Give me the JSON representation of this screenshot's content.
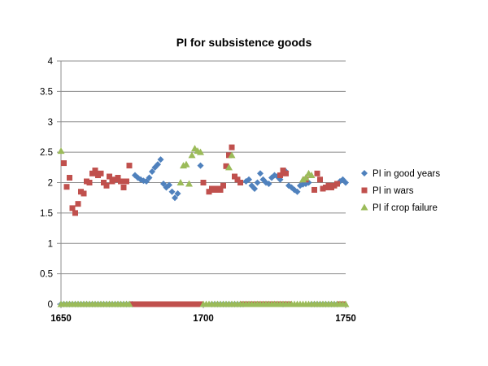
{
  "chart_data": {
    "type": "scatter",
    "title": "PI for subsistence goods",
    "xlabel": "",
    "ylabel": "",
    "xlim": [
      1650,
      1750
    ],
    "ylim": [
      0,
      4
    ],
    "x_ticks": [
      "1650",
      "1700",
      "1750"
    ],
    "y_ticks": [
      "0",
      "0.5",
      "1",
      "1.5",
      "2",
      "2.5",
      "3",
      "3.5",
      "4"
    ],
    "grid": "horizontal",
    "legend_position": "right",
    "colors": {
      "good": "#4F81BD",
      "wars": "#C0504D",
      "crop": "#9BBB59"
    },
    "series": [
      {
        "name": "PI in good years",
        "marker": "diamond",
        "points": [
          [
            1676,
            2.12
          ],
          [
            1677,
            2.08
          ],
          [
            1678,
            2.05
          ],
          [
            1679,
            2.03
          ],
          [
            1680,
            2.02
          ],
          [
            1681,
            2.08
          ],
          [
            1682,
            2.18
          ],
          [
            1683,
            2.25
          ],
          [
            1684,
            2.3
          ],
          [
            1685,
            2.38
          ],
          [
            1686,
            1.98
          ],
          [
            1687,
            1.92
          ],
          [
            1688,
            1.96
          ],
          [
            1689,
            1.85
          ],
          [
            1690,
            1.75
          ],
          [
            1691,
            1.82
          ],
          [
            1699,
            2.28
          ],
          [
            1715,
            2.02
          ],
          [
            1716,
            2.05
          ],
          [
            1717,
            1.95
          ],
          [
            1718,
            1.9
          ],
          [
            1719,
            2.0
          ],
          [
            1720,
            2.15
          ],
          [
            1721,
            2.05
          ],
          [
            1722,
            2.0
          ],
          [
            1723,
            1.98
          ],
          [
            1724,
            2.08
          ],
          [
            1725,
            2.12
          ],
          [
            1726,
            2.1
          ],
          [
            1727,
            2.05
          ],
          [
            1729,
            2.18
          ],
          [
            1730,
            1.95
          ],
          [
            1731,
            1.92
          ],
          [
            1732,
            1.88
          ],
          [
            1733,
            1.85
          ],
          [
            1734,
            1.95
          ],
          [
            1735,
            1.97
          ],
          [
            1736,
            1.98
          ],
          [
            1737,
            2.0
          ],
          [
            1748,
            2.02
          ],
          [
            1749,
            2.05
          ],
          [
            1750,
            2.0
          ],
          [
            1650,
            0
          ],
          [
            1651,
            0
          ],
          [
            1652,
            0
          ],
          [
            1653,
            0
          ],
          [
            1654,
            0
          ],
          [
            1655,
            0
          ],
          [
            1656,
            0
          ],
          [
            1657,
            0
          ],
          [
            1658,
            0
          ],
          [
            1659,
            0
          ],
          [
            1660,
            0
          ],
          [
            1661,
            0
          ],
          [
            1662,
            0
          ],
          [
            1663,
            0
          ],
          [
            1664,
            0
          ],
          [
            1665,
            0
          ],
          [
            1666,
            0
          ],
          [
            1667,
            0
          ],
          [
            1668,
            0
          ],
          [
            1669,
            0
          ],
          [
            1670,
            0
          ],
          [
            1671,
            0
          ],
          [
            1672,
            0
          ],
          [
            1673,
            0
          ],
          [
            1674,
            0
          ],
          [
            1675,
            0
          ],
          [
            1703,
            0
          ],
          [
            1704,
            0
          ],
          [
            1705,
            0
          ],
          [
            1706,
            0
          ],
          [
            1707,
            0
          ],
          [
            1708,
            0
          ],
          [
            1709,
            0
          ],
          [
            1710,
            0
          ],
          [
            1711,
            0
          ],
          [
            1712,
            0
          ],
          [
            1713,
            0
          ],
          [
            1714,
            0
          ],
          [
            1728,
            0
          ],
          [
            1738,
            0
          ],
          [
            1739,
            0
          ],
          [
            1740,
            0
          ],
          [
            1741,
            0
          ],
          [
            1742,
            0
          ],
          [
            1743,
            0
          ],
          [
            1744,
            0
          ],
          [
            1745,
            0
          ],
          [
            1746,
            0
          ],
          [
            1747,
            0
          ]
        ]
      },
      {
        "name": "PI in wars",
        "marker": "square",
        "points": [
          [
            1651,
            2.32
          ],
          [
            1652,
            1.93
          ],
          [
            1653,
            2.08
          ],
          [
            1654,
            1.58
          ],
          [
            1655,
            1.5
          ],
          [
            1656,
            1.65
          ],
          [
            1657,
            1.85
          ],
          [
            1658,
            1.82
          ],
          [
            1659,
            2.02
          ],
          [
            1660,
            2.0
          ],
          [
            1661,
            2.15
          ],
          [
            1662,
            2.2
          ],
          [
            1663,
            2.12
          ],
          [
            1664,
            2.15
          ],
          [
            1665,
            2.0
          ],
          [
            1666,
            1.95
          ],
          [
            1667,
            2.1
          ],
          [
            1668,
            2.02
          ],
          [
            1669,
            2.05
          ],
          [
            1670,
            2.08
          ],
          [
            1671,
            2.02
          ],
          [
            1672,
            1.92
          ],
          [
            1673,
            2.02
          ],
          [
            1674,
            2.28
          ],
          [
            1700,
            2.0
          ],
          [
            1702,
            1.85
          ],
          [
            1703,
            1.9
          ],
          [
            1704,
            1.88
          ],
          [
            1705,
            1.9
          ],
          [
            1706,
            1.88
          ],
          [
            1707,
            1.95
          ],
          [
            1708,
            2.27
          ],
          [
            1709,
            2.45
          ],
          [
            1710,
            2.58
          ],
          [
            1711,
            2.1
          ],
          [
            1712,
            2.05
          ],
          [
            1713,
            2.0
          ],
          [
            1727,
            2.12
          ],
          [
            1728,
            2.2
          ],
          [
            1729,
            2.15
          ],
          [
            1736,
            2.05
          ],
          [
            1739,
            1.88
          ],
          [
            1740,
            2.15
          ],
          [
            1741,
            2.05
          ],
          [
            1742,
            1.9
          ],
          [
            1743,
            1.92
          ],
          [
            1744,
            1.95
          ],
          [
            1745,
            1.92
          ],
          [
            1746,
            1.95
          ],
          [
            1747,
            1.98
          ],
          [
            1675,
            0
          ],
          [
            1676,
            0
          ],
          [
            1677,
            0
          ],
          [
            1678,
            0
          ],
          [
            1679,
            0
          ],
          [
            1680,
            0
          ],
          [
            1681,
            0
          ],
          [
            1682,
            0
          ],
          [
            1683,
            0
          ],
          [
            1684,
            0
          ],
          [
            1685,
            0
          ],
          [
            1686,
            0
          ],
          [
            1687,
            0
          ],
          [
            1688,
            0
          ],
          [
            1689,
            0
          ],
          [
            1690,
            0
          ],
          [
            1691,
            0
          ],
          [
            1692,
            0
          ],
          [
            1693,
            0
          ],
          [
            1694,
            0
          ],
          [
            1695,
            0
          ],
          [
            1696,
            0
          ],
          [
            1697,
            0
          ],
          [
            1698,
            0
          ],
          [
            1699,
            0
          ],
          [
            1714,
            0
          ],
          [
            1715,
            0
          ],
          [
            1716,
            0
          ],
          [
            1717,
            0
          ],
          [
            1718,
            0
          ],
          [
            1719,
            0
          ],
          [
            1720,
            0
          ],
          [
            1721,
            0
          ],
          [
            1722,
            0
          ],
          [
            1723,
            0
          ],
          [
            1724,
            0
          ],
          [
            1725,
            0
          ],
          [
            1726,
            0
          ],
          [
            1727,
            0
          ],
          [
            1728,
            0
          ],
          [
            1729,
            0
          ],
          [
            1730,
            0
          ],
          [
            1748,
            0
          ],
          [
            1749,
            0
          ]
        ]
      },
      {
        "name": "PI if crop failure",
        "marker": "triangle",
        "points": [
          [
            1650,
            2.52
          ],
          [
            1692,
            2.0
          ],
          [
            1693,
            2.28
          ],
          [
            1694,
            2.3
          ],
          [
            1695,
            1.98
          ],
          [
            1696,
            2.45
          ],
          [
            1697,
            2.56
          ],
          [
            1698,
            2.52
          ],
          [
            1699,
            2.5
          ],
          [
            1709,
            2.25
          ],
          [
            1710,
            2.45
          ],
          [
            1735,
            2.05
          ],
          [
            1736,
            2.08
          ],
          [
            1737,
            2.15
          ],
          [
            1738,
            2.12
          ],
          [
            1650,
            0
          ],
          [
            1651,
            0
          ],
          [
            1652,
            0
          ],
          [
            1653,
            0
          ],
          [
            1654,
            0
          ],
          [
            1655,
            0
          ],
          [
            1656,
            0
          ],
          [
            1657,
            0
          ],
          [
            1658,
            0
          ],
          [
            1659,
            0
          ],
          [
            1660,
            0
          ],
          [
            1661,
            0
          ],
          [
            1662,
            0
          ],
          [
            1663,
            0
          ],
          [
            1664,
            0
          ],
          [
            1665,
            0
          ],
          [
            1666,
            0
          ],
          [
            1667,
            0
          ],
          [
            1668,
            0
          ],
          [
            1669,
            0
          ],
          [
            1670,
            0
          ],
          [
            1671,
            0
          ],
          [
            1672,
            0
          ],
          [
            1673,
            0
          ],
          [
            1674,
            0
          ],
          [
            1700,
            0
          ],
          [
            1701,
            0
          ],
          [
            1702,
            0
          ],
          [
            1703,
            0
          ],
          [
            1704,
            0
          ],
          [
            1705,
            0
          ],
          [
            1706,
            0
          ],
          [
            1707,
            0
          ],
          [
            1708,
            0
          ],
          [
            1709,
            0
          ],
          [
            1710,
            0
          ],
          [
            1711,
            0
          ],
          [
            1712,
            0
          ],
          [
            1713,
            0
          ],
          [
            1714,
            0
          ],
          [
            1715,
            0
          ],
          [
            1716,
            0
          ],
          [
            1717,
            0
          ],
          [
            1718,
            0
          ],
          [
            1719,
            0
          ],
          [
            1720,
            0
          ],
          [
            1721,
            0
          ],
          [
            1722,
            0
          ],
          [
            1723,
            0
          ],
          [
            1724,
            0
          ],
          [
            1725,
            0
          ],
          [
            1726,
            0
          ],
          [
            1727,
            0
          ],
          [
            1728,
            0
          ],
          [
            1729,
            0
          ],
          [
            1730,
            0
          ],
          [
            1731,
            0
          ],
          [
            1732,
            0
          ],
          [
            1733,
            0
          ],
          [
            1734,
            0
          ],
          [
            1735,
            0
          ],
          [
            1736,
            0
          ],
          [
            1737,
            0
          ],
          [
            1738,
            0
          ],
          [
            1739,
            0
          ],
          [
            1740,
            0
          ],
          [
            1741,
            0
          ],
          [
            1742,
            0
          ],
          [
            1743,
            0
          ],
          [
            1744,
            0
          ],
          [
            1745,
            0
          ],
          [
            1746,
            0
          ],
          [
            1747,
            0
          ],
          [
            1748,
            0
          ],
          [
            1749,
            0
          ],
          [
            1750,
            0
          ]
        ]
      }
    ]
  }
}
